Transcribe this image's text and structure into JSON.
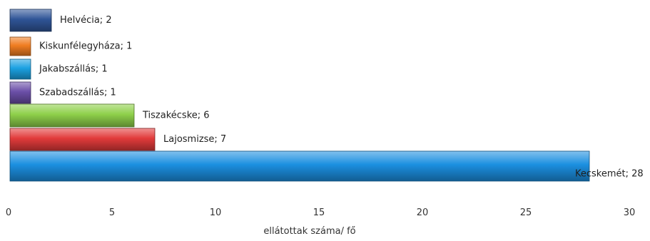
{
  "chart_data": {
    "type": "bar",
    "orientation": "horizontal",
    "categories": [
      "Helvécia",
      "Kiskunfélegyháza",
      "Jakabszállás",
      "Szabadszállás",
      "Tiszakécske",
      "Lajosmizse",
      "Kecskemét"
    ],
    "values": [
      2,
      1,
      1,
      1,
      6,
      7,
      28
    ],
    "data_labels": [
      "Helvécia; 2",
      "Kiskunfélegyháza; 1",
      "Jakabszállás; 1",
      "Szabadszállás; 1",
      "Tiszakécske; 6",
      "Lajosmizse; 7",
      "Kecskemét; 28"
    ],
    "colors": [
      "#2f5597",
      "#f07d21",
      "#1ba1e2",
      "#6b4fa8",
      "#8ed04a",
      "#e23b3b",
      "#1b8fe0"
    ],
    "xlim": [
      0,
      30
    ],
    "xticks": [
      0,
      5,
      10,
      15,
      20,
      25,
      30
    ],
    "xlabel": "ellátottak száma/ fő",
    "ylabel": "",
    "title": "",
    "grid": false,
    "legend": "none"
  }
}
